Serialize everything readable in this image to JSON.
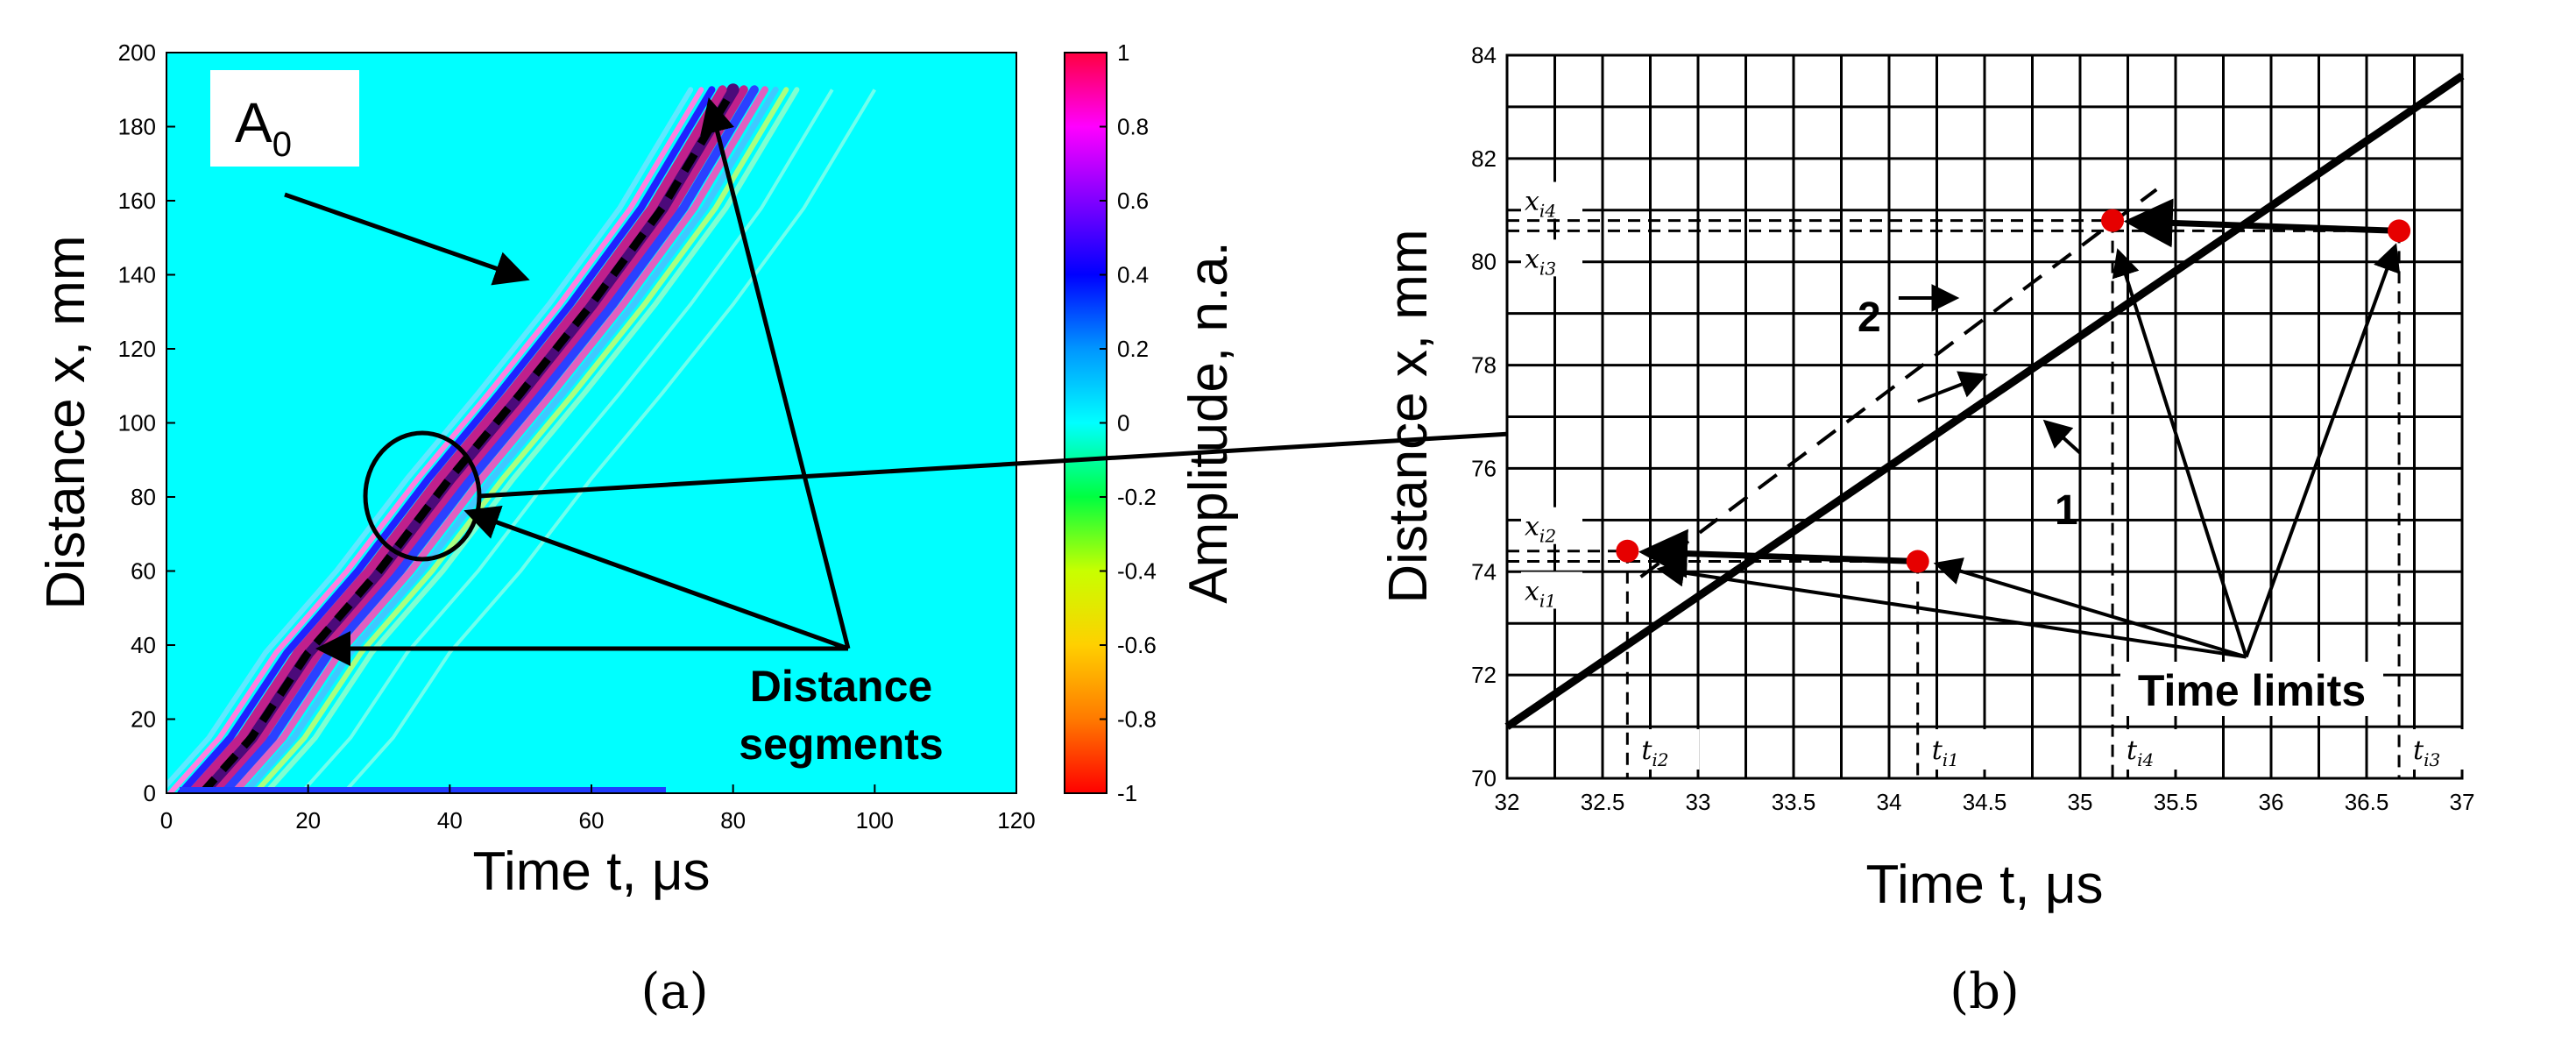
{
  "chart_data": [
    {
      "type": "heatmap",
      "panel_label": "(a)",
      "xlabel": "Time t, μs",
      "ylabel": "Distance x, mm",
      "xlim": [
        0,
        120
      ],
      "ylim": [
        0,
        200
      ],
      "xticks": [
        0,
        20,
        40,
        60,
        80,
        100,
        120
      ],
      "yticks": [
        0,
        20,
        40,
        60,
        80,
        100,
        120,
        140,
        160,
        180,
        200
      ],
      "colorbar": {
        "label": "Amplitude, n.a.",
        "range": [
          -1,
          1
        ],
        "ticks": [
          "1",
          "0.8",
          "0.6",
          "0.4",
          "0.2",
          "0",
          "-0.2",
          "-0.4",
          "-0.6",
          "-0.8",
          "-1"
        ]
      },
      "mode_label": "A",
      "mode_subscript": "0",
      "annotation": "Distance segments",
      "wave_ridge": [
        [
          5,
          0
        ],
        [
          12,
          15
        ],
        [
          20,
          38
        ],
        [
          30,
          60
        ],
        [
          40,
          85
        ],
        [
          50,
          108
        ],
        [
          60,
          132
        ],
        [
          70,
          158
        ],
        [
          80,
          190
        ]
      ],
      "colors": {
        "background": "#00ffff",
        "ridge_dark": "#4b0a7a",
        "ridge_mid": "#c0208c",
        "ridge_light": "#e060c0"
      }
    },
    {
      "type": "line",
      "panel_label": "(b)",
      "xlabel": "Time t, μs",
      "ylabel": "Distance x, mm",
      "xlim": [
        32,
        37
      ],
      "ylim": [
        70,
        84
      ],
      "xticks": [
        "32",
        "32.5",
        "33",
        "33.5",
        "34",
        "34.5",
        "35",
        "35.5",
        "36",
        "36.5",
        "37"
      ],
      "yticks": [
        "70",
        "72",
        "74",
        "76",
        "78",
        "80",
        "82",
        "84"
      ],
      "grid": true,
      "series": [
        {
          "name": "1",
          "style": "solid",
          "x": [
            32,
            37
          ],
          "y": [
            71,
            83.6
          ]
        },
        {
          "name": "2",
          "style": "dashed",
          "x": [
            32.7,
            35.4
          ],
          "y": [
            73.9,
            81.4
          ]
        }
      ],
      "points": [
        {
          "x": 32.63,
          "y": 74.4
        },
        {
          "x": 34.15,
          "y": 74.2
        },
        {
          "x": 35.17,
          "y": 80.8
        },
        {
          "x": 36.67,
          "y": 80.6
        }
      ],
      "time_labels": [
        {
          "base": "t",
          "sub": "i2",
          "x": 32.63
        },
        {
          "base": "t",
          "sub": "i1",
          "x": 34.15
        },
        {
          "base": "t",
          "sub": "i4",
          "x": 35.17
        },
        {
          "base": "t",
          "sub": "i3",
          "x": 36.67
        }
      ],
      "dist_labels": [
        {
          "base": "x",
          "sub": "i4",
          "y": 80.8
        },
        {
          "base": "x",
          "sub": "i3",
          "y": 80.6
        },
        {
          "base": "x",
          "sub": "i2",
          "y": 74.4
        },
        {
          "base": "x",
          "sub": "i1",
          "y": 74.2
        }
      ],
      "annotation": "Time limits",
      "colors": {
        "point": "#e60000",
        "line": "#000000"
      }
    }
  ]
}
